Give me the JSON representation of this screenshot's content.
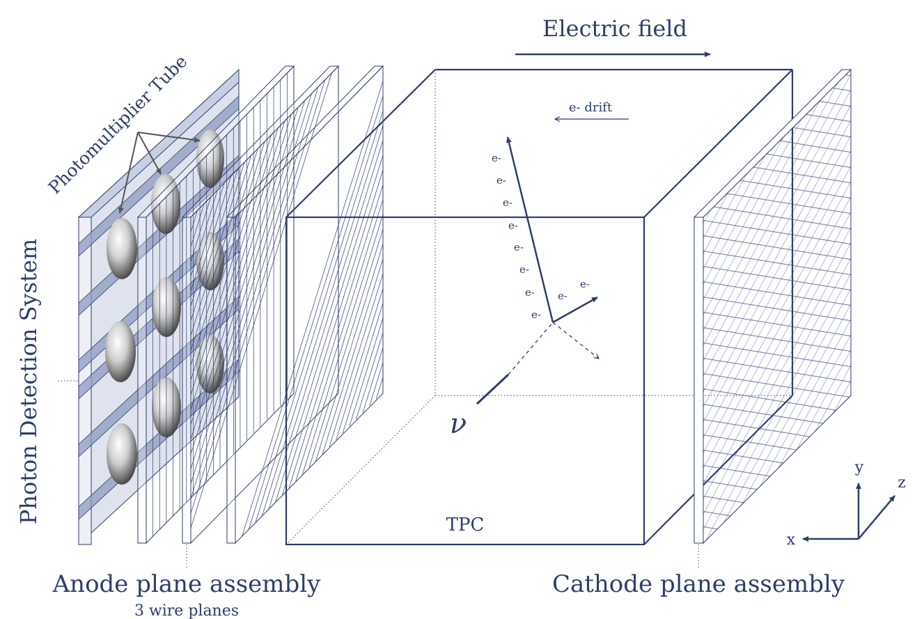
{
  "labels": {
    "electric_field": "Electric field",
    "e_drift": "e- drift",
    "photomultiplier_tube": "Photomultiplier Tube",
    "photon_detection_system": "Photon Detection System",
    "anode_plane_assembly": "Anode plane assembly",
    "wire_planes": "3 wire planes",
    "cathode_plane_assembly": "Cathode plane assembly",
    "tpc": "TPC",
    "neutrino": "ν",
    "electron": "e-"
  },
  "axes": {
    "x": "x",
    "y": "y",
    "z": "z"
  },
  "colors": {
    "line": "#2d3e6b",
    "panel_fill": "#b8c0d8",
    "panel_stripe": "#8e99bf",
    "pmt_light": "#ffffff",
    "pmt_dark": "#555555"
  }
}
